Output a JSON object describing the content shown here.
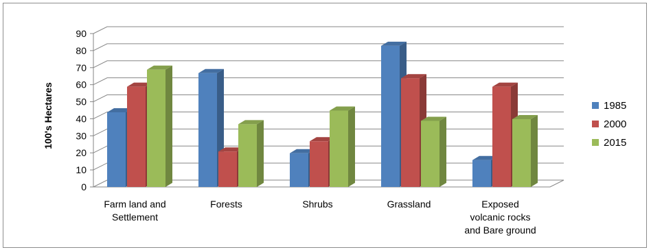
{
  "chart_data": {
    "type": "bar",
    "title": "",
    "xlabel": "",
    "ylabel": "100's Hectares",
    "ylim": [
      0,
      90
    ],
    "yticks": [
      0,
      10,
      20,
      30,
      40,
      50,
      60,
      70,
      80,
      90
    ],
    "grid": true,
    "legend_position": "right",
    "categories": [
      [
        "Farm land and",
        "Settlement"
      ],
      [
        "Forests"
      ],
      [
        "Shrubs"
      ],
      [
        "Grassland"
      ],
      [
        "Exposed",
        "volcanic rocks",
        "and Bare ground"
      ]
    ],
    "series": [
      {
        "name": "1985",
        "color": "#4f81bd",
        "values": [
          45,
          68,
          21,
          84,
          17
        ]
      },
      {
        "name": "2000",
        "color": "#c0504d",
        "values": [
          60,
          22,
          28,
          65,
          60
        ]
      },
      {
        "name": "2015",
        "color": "#9bbb59",
        "values": [
          70,
          38,
          46,
          40,
          41
        ]
      }
    ]
  }
}
